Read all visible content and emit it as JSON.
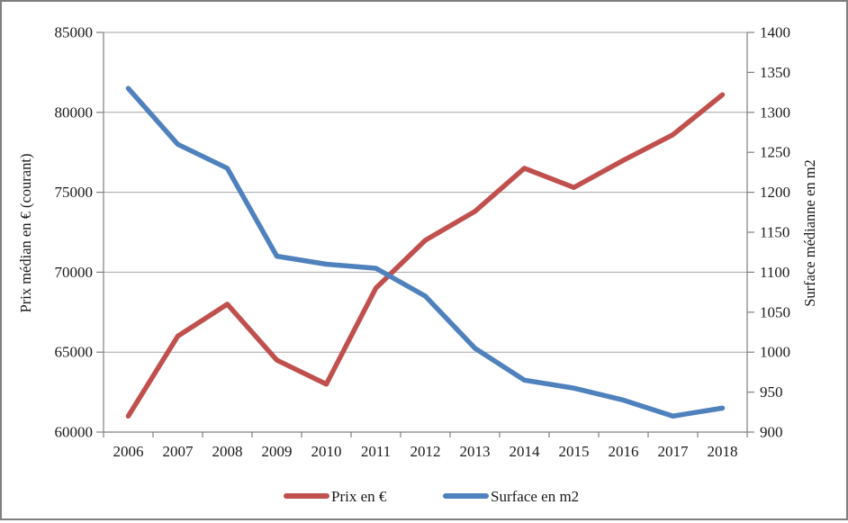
{
  "chart": {
    "left_axis": {
      "title": "Prix médian en € (courant)",
      "tick_labels": [
        "85000",
        "80000",
        "75000",
        "70000",
        "65000",
        "60000"
      ]
    },
    "right_axis": {
      "title": "Surface médianne en m2",
      "tick_labels": [
        "1400",
        "1350",
        "1300",
        "1250",
        "1200",
        "1150",
        "1100",
        "1050",
        "1000",
        "950",
        "900"
      ]
    },
    "x_axis": {
      "tick_labels": [
        "2006",
        "2007",
        "2008",
        "2009",
        "2010",
        "2011",
        "2012",
        "2013",
        "2014",
        "2015",
        "2016",
        "2017",
        "2018"
      ]
    },
    "colors": {
      "price_line": "#C0504D",
      "surface_line": "#4F81BD",
      "gridline": "#A6A6A6",
      "axis_line": "#808080",
      "text": "#1a1a1a",
      "frame_border": "#7f7f7f"
    }
  },
  "chart_data": {
    "type": "line",
    "categories": [
      "2006",
      "2007",
      "2008",
      "2009",
      "2010",
      "2011",
      "2012",
      "2013",
      "2014",
      "2015",
      "2016",
      "2017",
      "2018"
    ],
    "series": [
      {
        "name": "Prix en €",
        "axis": "left",
        "color": "#C0504D",
        "values": [
          61000,
          66000,
          68000,
          64500,
          63000,
          69000,
          72000,
          73800,
          76500,
          75300,
          77000,
          78600,
          81100
        ]
      },
      {
        "name": "Surface en m2",
        "axis": "right",
        "color": "#4F81BD",
        "values": [
          1330,
          1260,
          1230,
          1120,
          1110,
          1105,
          1070,
          1005,
          965,
          955,
          940,
          920,
          930
        ]
      }
    ],
    "left_ylabel": "Prix médian en € (courant)",
    "right_ylabel": "Surface médianne en m2",
    "left_ylim": [
      60000,
      85000
    ],
    "left_step": 5000,
    "right_ylim": [
      900,
      1400
    ],
    "right_step": 50,
    "grid": true,
    "legend_position": "bottom"
  }
}
